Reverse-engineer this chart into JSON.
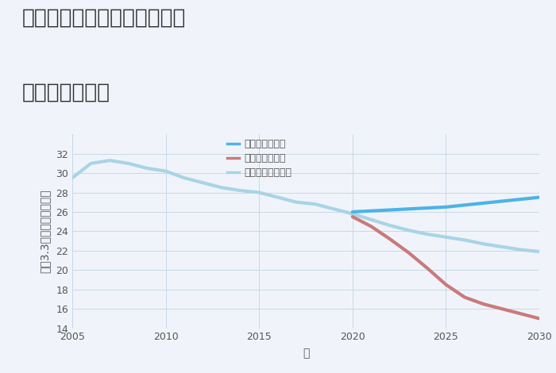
{
  "title_line1": "兵庫県姫路市木場十八反町の",
  "title_line2": "土地の価格推移",
  "xlabel": "年",
  "ylabel": "平（3.3㎡）単価（万円）",
  "background_color": "#f0f4fa",
  "plot_bg_color": "#f0f4fa",
  "ylim": [
    14,
    34
  ],
  "xlim": [
    2005,
    2030
  ],
  "yticks": [
    14,
    16,
    18,
    20,
    22,
    24,
    26,
    28,
    30,
    32
  ],
  "xticks": [
    2005,
    2010,
    2015,
    2020,
    2025,
    2030
  ],
  "good_scenario": {
    "x": [
      2020,
      2021,
      2022,
      2023,
      2024,
      2025,
      2026,
      2027,
      2028,
      2029,
      2030
    ],
    "y": [
      26.0,
      26.1,
      26.2,
      26.3,
      26.4,
      26.5,
      26.7,
      26.9,
      27.1,
      27.3,
      27.5
    ],
    "color": "#4db3e6",
    "linewidth": 3,
    "label": "グッドシナリオ"
  },
  "bad_scenario": {
    "x": [
      2020,
      2021,
      2022,
      2023,
      2024,
      2025,
      2026,
      2027,
      2028,
      2029,
      2030
    ],
    "y": [
      25.5,
      24.5,
      23.2,
      21.8,
      20.2,
      18.5,
      17.2,
      16.5,
      16.0,
      15.5,
      15.0
    ],
    "color": "#c97a7a",
    "linewidth": 3,
    "label": "バッドシナリオ"
  },
  "normal_scenario": {
    "x": [
      2005,
      2006,
      2007,
      2008,
      2009,
      2010,
      2011,
      2012,
      2013,
      2014,
      2015,
      2016,
      2017,
      2018,
      2019,
      2020,
      2021,
      2022,
      2023,
      2024,
      2025,
      2026,
      2027,
      2028,
      2029,
      2030
    ],
    "y": [
      29.5,
      31.0,
      31.3,
      31.0,
      30.5,
      30.2,
      29.5,
      29.0,
      28.5,
      28.2,
      28.0,
      27.5,
      27.0,
      26.8,
      26.3,
      25.8,
      25.2,
      24.6,
      24.1,
      23.7,
      23.4,
      23.1,
      22.7,
      22.4,
      22.1,
      21.9
    ],
    "color": "#a8d4e6",
    "linewidth": 3,
    "label": "ノーマルシナリオ"
  },
  "grid_color": "#c8d8e8",
  "title_fontsize": 19,
  "axis_label_fontsize": 10,
  "tick_fontsize": 9,
  "legend_fontsize": 9
}
